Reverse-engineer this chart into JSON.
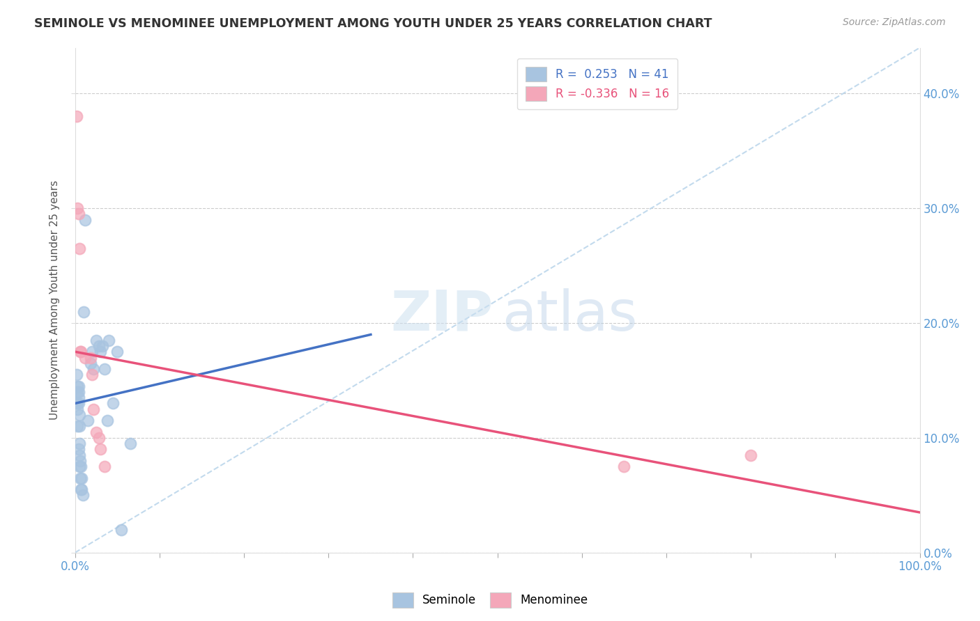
{
  "title": "SEMINOLE VS MENOMINEE UNEMPLOYMENT AMONG YOUTH UNDER 25 YEARS CORRELATION CHART",
  "source": "Source: ZipAtlas.com",
  "ylabel": "Unemployment Among Youth under 25 years",
  "legend_seminole": "Seminole",
  "legend_menominee": "Menominee",
  "R_seminole": 0.253,
  "N_seminole": 41,
  "R_menominee": -0.336,
  "N_menominee": 16,
  "xlim": [
    0,
    1.0
  ],
  "ylim": [
    0.0,
    0.44
  ],
  "yticks": [
    0.0,
    0.1,
    0.2,
    0.3,
    0.4
  ],
  "xtick_positions": [
    0.0,
    0.1,
    0.2,
    0.3,
    0.4,
    0.5,
    0.6,
    0.7,
    0.8,
    0.9,
    1.0
  ],
  "seminole_color": "#a8c4e0",
  "menominee_color": "#f4a7b9",
  "trendline_seminole_color": "#4472c4",
  "trendline_menominee_color": "#e8527a",
  "diagonal_color": "#b8d4ea",
  "seminole_x": [
    0.002,
    0.002,
    0.003,
    0.003,
    0.003,
    0.003,
    0.003,
    0.004,
    0.004,
    0.004,
    0.004,
    0.004,
    0.005,
    0.005,
    0.005,
    0.005,
    0.005,
    0.006,
    0.006,
    0.007,
    0.007,
    0.008,
    0.008,
    0.009,
    0.01,
    0.012,
    0.015,
    0.018,
    0.02,
    0.022,
    0.025,
    0.028,
    0.03,
    0.032,
    0.035,
    0.038,
    0.04,
    0.045,
    0.05,
    0.055,
    0.065
  ],
  "seminole_y": [
    0.13,
    0.155,
    0.145,
    0.14,
    0.13,
    0.125,
    0.11,
    0.145,
    0.14,
    0.135,
    0.13,
    0.09,
    0.12,
    0.11,
    0.095,
    0.085,
    0.075,
    0.08,
    0.065,
    0.075,
    0.055,
    0.065,
    0.055,
    0.05,
    0.21,
    0.29,
    0.115,
    0.165,
    0.175,
    0.16,
    0.185,
    0.18,
    0.175,
    0.18,
    0.16,
    0.115,
    0.185,
    0.13,
    0.175,
    0.02,
    0.095
  ],
  "menominee_x": [
    0.002,
    0.003,
    0.004,
    0.005,
    0.006,
    0.007,
    0.012,
    0.018,
    0.02,
    0.022,
    0.025,
    0.028,
    0.03,
    0.035,
    0.65,
    0.8
  ],
  "menominee_y": [
    0.38,
    0.3,
    0.295,
    0.265,
    0.175,
    0.175,
    0.17,
    0.17,
    0.155,
    0.125,
    0.105,
    0.1,
    0.09,
    0.075,
    0.075,
    0.085
  ],
  "seminole_trend_x0": 0.0,
  "seminole_trend_x1": 0.35,
  "seminole_trend_y0": 0.13,
  "seminole_trend_y1": 0.19,
  "menominee_trend_x0": 0.0,
  "menominee_trend_x1": 1.0,
  "menominee_trend_y0": 0.175,
  "menominee_trend_y1": 0.035
}
